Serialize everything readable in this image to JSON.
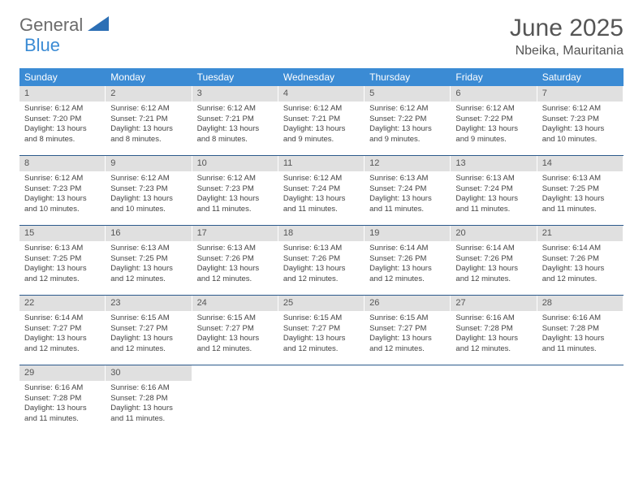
{
  "logo": {
    "part1": "General",
    "part2": "Blue"
  },
  "title": "June 2025",
  "location": "Nbeika, Mauritania",
  "colors": {
    "header_blue": "#3b8bd4",
    "daynum_gray": "#e0e0e0",
    "week_border": "#2c5a8c",
    "text_gray": "#555555",
    "body_text": "#444444"
  },
  "day_headers": [
    "Sunday",
    "Monday",
    "Tuesday",
    "Wednesday",
    "Thursday",
    "Friday",
    "Saturday"
  ],
  "weeks": [
    [
      {
        "n": "1",
        "sr": "6:12 AM",
        "ss": "7:20 PM",
        "dl": "13 hours and 8 minutes."
      },
      {
        "n": "2",
        "sr": "6:12 AM",
        "ss": "7:21 PM",
        "dl": "13 hours and 8 minutes."
      },
      {
        "n": "3",
        "sr": "6:12 AM",
        "ss": "7:21 PM",
        "dl": "13 hours and 8 minutes."
      },
      {
        "n": "4",
        "sr": "6:12 AM",
        "ss": "7:21 PM",
        "dl": "13 hours and 9 minutes."
      },
      {
        "n": "5",
        "sr": "6:12 AM",
        "ss": "7:22 PM",
        "dl": "13 hours and 9 minutes."
      },
      {
        "n": "6",
        "sr": "6:12 AM",
        "ss": "7:22 PM",
        "dl": "13 hours and 9 minutes."
      },
      {
        "n": "7",
        "sr": "6:12 AM",
        "ss": "7:23 PM",
        "dl": "13 hours and 10 minutes."
      }
    ],
    [
      {
        "n": "8",
        "sr": "6:12 AM",
        "ss": "7:23 PM",
        "dl": "13 hours and 10 minutes."
      },
      {
        "n": "9",
        "sr": "6:12 AM",
        "ss": "7:23 PM",
        "dl": "13 hours and 10 minutes."
      },
      {
        "n": "10",
        "sr": "6:12 AM",
        "ss": "7:23 PM",
        "dl": "13 hours and 11 minutes."
      },
      {
        "n": "11",
        "sr": "6:12 AM",
        "ss": "7:24 PM",
        "dl": "13 hours and 11 minutes."
      },
      {
        "n": "12",
        "sr": "6:13 AM",
        "ss": "7:24 PM",
        "dl": "13 hours and 11 minutes."
      },
      {
        "n": "13",
        "sr": "6:13 AM",
        "ss": "7:24 PM",
        "dl": "13 hours and 11 minutes."
      },
      {
        "n": "14",
        "sr": "6:13 AM",
        "ss": "7:25 PM",
        "dl": "13 hours and 11 minutes."
      }
    ],
    [
      {
        "n": "15",
        "sr": "6:13 AM",
        "ss": "7:25 PM",
        "dl": "13 hours and 12 minutes."
      },
      {
        "n": "16",
        "sr": "6:13 AM",
        "ss": "7:25 PM",
        "dl": "13 hours and 12 minutes."
      },
      {
        "n": "17",
        "sr": "6:13 AM",
        "ss": "7:26 PM",
        "dl": "13 hours and 12 minutes."
      },
      {
        "n": "18",
        "sr": "6:13 AM",
        "ss": "7:26 PM",
        "dl": "13 hours and 12 minutes."
      },
      {
        "n": "19",
        "sr": "6:14 AM",
        "ss": "7:26 PM",
        "dl": "13 hours and 12 minutes."
      },
      {
        "n": "20",
        "sr": "6:14 AM",
        "ss": "7:26 PM",
        "dl": "13 hours and 12 minutes."
      },
      {
        "n": "21",
        "sr": "6:14 AM",
        "ss": "7:26 PM",
        "dl": "13 hours and 12 minutes."
      }
    ],
    [
      {
        "n": "22",
        "sr": "6:14 AM",
        "ss": "7:27 PM",
        "dl": "13 hours and 12 minutes."
      },
      {
        "n": "23",
        "sr": "6:15 AM",
        "ss": "7:27 PM",
        "dl": "13 hours and 12 minutes."
      },
      {
        "n": "24",
        "sr": "6:15 AM",
        "ss": "7:27 PM",
        "dl": "13 hours and 12 minutes."
      },
      {
        "n": "25",
        "sr": "6:15 AM",
        "ss": "7:27 PM",
        "dl": "13 hours and 12 minutes."
      },
      {
        "n": "26",
        "sr": "6:15 AM",
        "ss": "7:27 PM",
        "dl": "13 hours and 12 minutes."
      },
      {
        "n": "27",
        "sr": "6:16 AM",
        "ss": "7:28 PM",
        "dl": "13 hours and 12 minutes."
      },
      {
        "n": "28",
        "sr": "6:16 AM",
        "ss": "7:28 PM",
        "dl": "13 hours and 11 minutes."
      }
    ],
    [
      {
        "n": "29",
        "sr": "6:16 AM",
        "ss": "7:28 PM",
        "dl": "13 hours and 11 minutes."
      },
      {
        "n": "30",
        "sr": "6:16 AM",
        "ss": "7:28 PM",
        "dl": "13 hours and 11 minutes."
      },
      null,
      null,
      null,
      null,
      null
    ]
  ],
  "labels": {
    "sunrise": "Sunrise:",
    "sunset": "Sunset:",
    "daylight": "Daylight:"
  }
}
